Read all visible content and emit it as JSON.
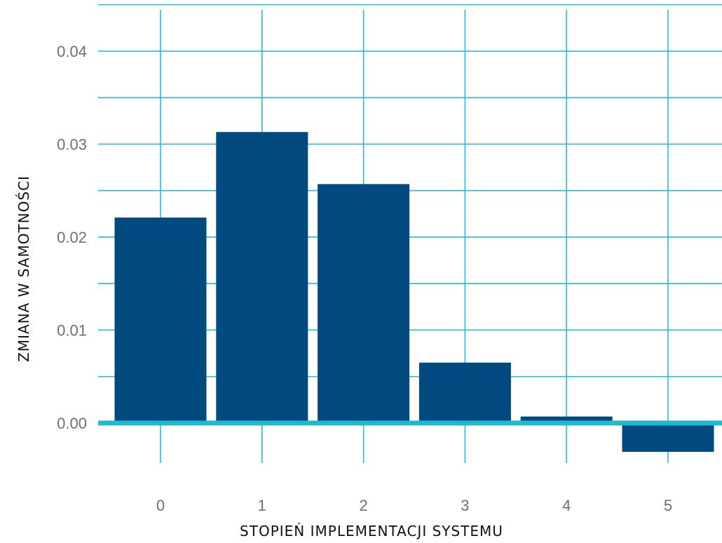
{
  "chart_data": {
    "type": "bar",
    "title": "",
    "xlabel": "STOPIEŃ IMPLEMENTACJI SYSTEMU",
    "ylabel": "ZMIANA W SAMOTNOŚCI",
    "categories": [
      "0",
      "1",
      "2",
      "3",
      "4",
      "5"
    ],
    "values": [
      0.0221,
      0.0313,
      0.0257,
      0.0065,
      0.0007,
      -0.0031
    ],
    "ylim": [
      -0.0043,
      0.0455
    ],
    "yticks": [
      "0.00",
      "0.01",
      "0.02",
      "0.03",
      "0.04"
    ],
    "ytick_values": [
      0,
      0.01,
      0.02,
      0.03,
      0.04
    ],
    "grid": true,
    "colors": {
      "bar": "#004a80",
      "grid": "#2bb9d4",
      "zero_line": "#21b8cf"
    }
  }
}
